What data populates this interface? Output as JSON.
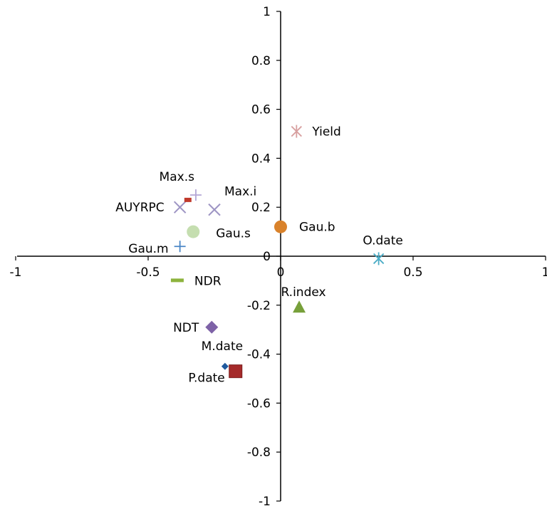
{
  "chart_data": {
    "type": "scatter",
    "title": "",
    "xlabel": "",
    "ylabel": "",
    "xlim": [
      -1,
      1
    ],
    "ylim": [
      -1,
      1
    ],
    "grid": false,
    "legend": "none",
    "x_ticks": [
      {
        "value": -1,
        "label": "-1"
      },
      {
        "value": -0.5,
        "label": "-0.5"
      },
      {
        "value": 0,
        "label": "0"
      },
      {
        "value": 0.5,
        "label": "0.5"
      },
      {
        "value": 1,
        "label": "1"
      }
    ],
    "y_ticks": [
      {
        "value": 1,
        "label": "1"
      },
      {
        "value": 0.8,
        "label": "0.8"
      },
      {
        "value": 0.6,
        "label": "0.6"
      },
      {
        "value": 0.4,
        "label": "0.4"
      },
      {
        "value": 0.2,
        "label": "0.2"
      },
      {
        "value": 0,
        "label": "0"
      },
      {
        "value": -0.2,
        "label": "-0.2"
      },
      {
        "value": -0.4,
        "label": "-0.4"
      },
      {
        "value": -0.6,
        "label": "-0.6"
      },
      {
        "value": -0.8,
        "label": "-0.8"
      },
      {
        "value": -1,
        "label": "-1"
      }
    ],
    "points": [
      {
        "label": "Yield",
        "x": 0.06,
        "y": 0.51,
        "marker": "asterisk",
        "color": "#D8A0A0"
      },
      {
        "label": "Max.s",
        "x": -0.32,
        "y": 0.25,
        "marker": "plus",
        "color": "#B4A7D6"
      },
      {
        "label": "Max.i",
        "x": -0.25,
        "y": 0.19,
        "marker": "cross",
        "color": "#9E95C4"
      },
      {
        "label": "AUYRPC",
        "x": -0.38,
        "y": 0.2,
        "marker": "cross",
        "color": "#9E95C4"
      },
      {
        "label": "",
        "x": -0.35,
        "y": 0.23,
        "marker": "small-square",
        "color": "#C0392B"
      },
      {
        "label": "Gau.s",
        "x": -0.33,
        "y": 0.1,
        "marker": "circle",
        "color": "#C5DEB0"
      },
      {
        "label": "Gau.b",
        "x": 0.0,
        "y": 0.12,
        "marker": "circle",
        "color": "#D9822B"
      },
      {
        "label": "Gau.m",
        "x": -0.38,
        "y": 0.04,
        "marker": "plus",
        "color": "#4A86C6"
      },
      {
        "label": "O.date",
        "x": 0.37,
        "y": -0.01,
        "marker": "asterisk",
        "color": "#4BACC6"
      },
      {
        "label": "NDR",
        "x": -0.39,
        "y": -0.1,
        "marker": "dash",
        "color": "#8DB33D"
      },
      {
        "label": "R.index",
        "x": 0.07,
        "y": -0.21,
        "marker": "triangle",
        "color": "#77A03A"
      },
      {
        "label": "NDT",
        "x": -0.26,
        "y": -0.29,
        "marker": "diamond",
        "color": "#7E62A7"
      },
      {
        "label": "M.date",
        "x": -0.21,
        "y": -0.45,
        "marker": "small-diamond",
        "color": "#1F5A9E"
      },
      {
        "label": "P.date",
        "x": -0.17,
        "y": -0.47,
        "marker": "square",
        "color": "#A52A2A"
      }
    ]
  }
}
